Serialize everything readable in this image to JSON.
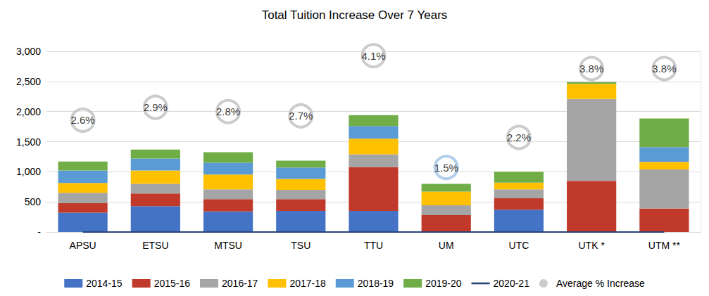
{
  "chart_data": {
    "type": "bar",
    "title": "Total Tuition Increase Over 7 Years",
    "categories": [
      "APSU",
      "ETSU",
      "MTSU",
      "TSU",
      "TTU",
      "UM",
      "UTC",
      "UTK *",
      "UTM **"
    ],
    "stacked": true,
    "grid": true,
    "legend": "bottom",
    "ylim": [
      0,
      3000
    ],
    "yticks": [
      {
        "value": 0,
        "label": "-"
      },
      500,
      {
        "value": 1000,
        "label": "1,000"
      },
      {
        "value": 1500,
        "label": "1,500"
      },
      {
        "value": 2000,
        "label": "2,000"
      },
      {
        "value": 2500,
        "label": "2,500"
      },
      {
        "value": 3000,
        "label": "3,000"
      }
    ],
    "y2lim": [
      0,
      4.2
    ],
    "series": [
      {
        "name": "2014-15",
        "type": "bar",
        "color": "#4472c4",
        "values": [
          320,
          430,
          340,
          350,
          350,
          0,
          370,
          0,
          0
        ]
      },
      {
        "name": "2015-16",
        "type": "bar",
        "color": "#c0392b",
        "values": [
          160,
          210,
          205,
          195,
          730,
          280,
          190,
          850,
          390
        ]
      },
      {
        "name": "2016-17",
        "type": "bar",
        "color": "#a5a5a5",
        "values": [
          170,
          160,
          165,
          155,
          210,
          165,
          150,
          1360,
          650
        ]
      },
      {
        "name": "2017-18",
        "type": "bar",
        "color": "#ffc000",
        "values": [
          165,
          220,
          245,
          180,
          260,
          225,
          110,
          250,
          125
        ]
      },
      {
        "name": "2018-19",
        "type": "bar",
        "color": "#5b9bd5",
        "values": [
          205,
          200,
          195,
          190,
          210,
          0,
          0,
          0,
          245
        ]
      },
      {
        "name": "2019-20",
        "type": "bar",
        "color": "#70ad47",
        "values": [
          150,
          150,
          175,
          115,
          180,
          130,
          180,
          30,
          475
        ]
      },
      {
        "name": "2020-21",
        "type": "line",
        "color": "#264478",
        "values": [
          0,
          0,
          0,
          0,
          0,
          0,
          0,
          0,
          0
        ]
      },
      {
        "name": "Average % Increase",
        "type": "scatter",
        "axis": "y2",
        "marker": "circle",
        "data_labels": true,
        "color": "#bfbfbf",
        "colors": [
          "#bfbfbf",
          "#bfbfbf",
          "#bfbfbf",
          "#bfbfbf",
          "#bfbfbf",
          "#9dc3e6",
          "#bfbfbf",
          "#bfbfbf",
          "#bfbfbf"
        ],
        "values": [
          2.6,
          2.9,
          2.8,
          2.7,
          4.1,
          1.5,
          2.2,
          3.8,
          3.8
        ],
        "value_labels": [
          "2.6%",
          "2.9%",
          "2.8%",
          "2.7%",
          "4.1%",
          "1.5%",
          "2.2%",
          "3.8%",
          "3.8%"
        ]
      }
    ]
  }
}
